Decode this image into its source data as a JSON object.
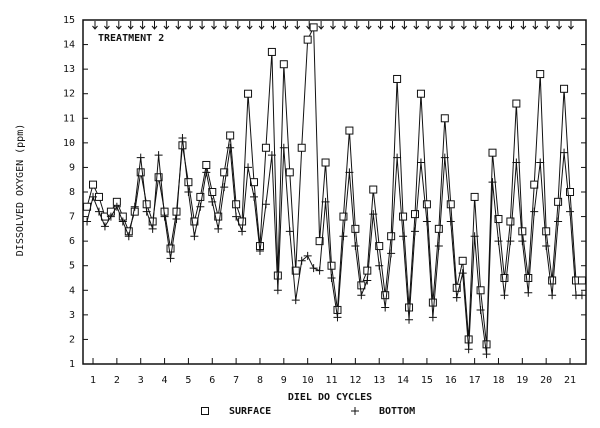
{
  "chart_data": {
    "type": "line",
    "annotation": "TREATMENT 2",
    "ylabel": "DISSOLVED OXYGEN (ppm)",
    "xlabel": "DIEL DO CYCLES",
    "x": [
      0.75,
      1,
      1.25,
      1.5,
      1.75,
      2,
      2.25,
      2.5,
      2.75,
      3,
      3.25,
      3.5,
      3.75,
      4,
      4.25,
      4.5,
      4.75,
      5,
      5.25,
      5.5,
      5.75,
      6,
      6.25,
      6.5,
      6.75,
      7,
      7.25,
      7.5,
      7.75,
      8,
      8.25,
      8.5,
      8.75,
      9,
      9.25,
      9.5,
      9.75,
      10,
      10.25,
      10.5,
      10.75,
      11,
      11.25,
      11.5,
      11.75,
      12,
      12.25,
      12.5,
      12.75,
      13,
      13.25,
      13.5,
      13.75,
      14,
      14.25,
      14.5,
      14.75,
      15,
      15.25,
      15.5,
      15.75,
      16,
      16.25,
      16.5,
      16.75,
      17,
      17.25,
      17.5,
      17.75,
      18,
      18.25,
      18.5,
      18.75,
      19,
      19.25,
      19.5,
      19.75,
      20,
      20.25,
      20.5,
      20.75,
      21,
      21.25,
      21.5
    ],
    "series": [
      {
        "name": "SURFACE",
        "marker": "square",
        "color": "#111111",
        "values": [
          7.4,
          8.3,
          7.8,
          7.0,
          7.2,
          7.6,
          7.0,
          6.4,
          7.2,
          8.8,
          7.5,
          6.8,
          8.6,
          7.2,
          5.7,
          7.2,
          9.9,
          8.4,
          6.8,
          7.8,
          9.1,
          8.0,
          7.0,
          8.8,
          10.3,
          7.5,
          6.8,
          12.0,
          8.4,
          5.8,
          9.8,
          13.7,
          4.6,
          13.2,
          8.8,
          4.8,
          9.8,
          14.2,
          14.7,
          6.0,
          9.2,
          5.0,
          3.2,
          7.0,
          10.5,
          6.5,
          4.2,
          4.8,
          8.1,
          5.8,
          3.8,
          6.2,
          12.6,
          7.0,
          3.3,
          7.1,
          12.0,
          7.5,
          3.5,
          6.5,
          11.0,
          7.5,
          4.1,
          5.2,
          2.0,
          7.8,
          4.0,
          1.8,
          9.6,
          6.9,
          4.5,
          6.8,
          11.6,
          6.4,
          4.5,
          8.3,
          12.8,
          6.4,
          4.4,
          7.6,
          12.2,
          8.0,
          4.4,
          4.4
        ]
      },
      {
        "name": "BOTTOM",
        "marker": "plus",
        "color": "#111111",
        "values": [
          6.8,
          7.8,
          7.2,
          6.6,
          7.0,
          7.4,
          6.8,
          6.2,
          7.4,
          9.4,
          7.2,
          6.5,
          9.5,
          7.0,
          5.3,
          6.9,
          10.2,
          8.0,
          6.2,
          7.4,
          8.8,
          7.6,
          6.5,
          8.2,
          9.8,
          7.0,
          6.4,
          9.0,
          7.8,
          5.6,
          7.5,
          9.5,
          4.0,
          9.8,
          6.4,
          3.6,
          5.2,
          5.4,
          4.9,
          4.8,
          7.6,
          4.5,
          2.9,
          6.2,
          8.8,
          5.8,
          3.8,
          4.4,
          7.1,
          5.0,
          3.3,
          5.5,
          9.4,
          6.2,
          2.8,
          6.4,
          9.2,
          6.8,
          2.9,
          5.8,
          9.4,
          6.8,
          3.7,
          4.7,
          1.6,
          6.2,
          3.2,
          1.4,
          8.4,
          6.0,
          3.8,
          6.0,
          9.2,
          6.0,
          3.9,
          7.2,
          9.2,
          5.8,
          3.8,
          6.8,
          9.6,
          7.2,
          3.8,
          3.8
        ]
      }
    ],
    "xlim": [
      0.58,
      21.67
    ],
    "xticks": [
      1,
      2,
      3,
      4,
      5,
      6,
      7,
      8,
      9,
      10,
      11,
      12,
      13,
      14,
      15,
      16,
      17,
      18,
      19,
      20,
      21
    ],
    "ylim": [
      1,
      15
    ],
    "yticks": [
      1,
      2,
      3,
      4,
      5,
      6,
      7,
      8,
      9,
      10,
      11,
      12,
      13,
      14,
      15
    ],
    "grid": false,
    "legend": "bottom"
  }
}
